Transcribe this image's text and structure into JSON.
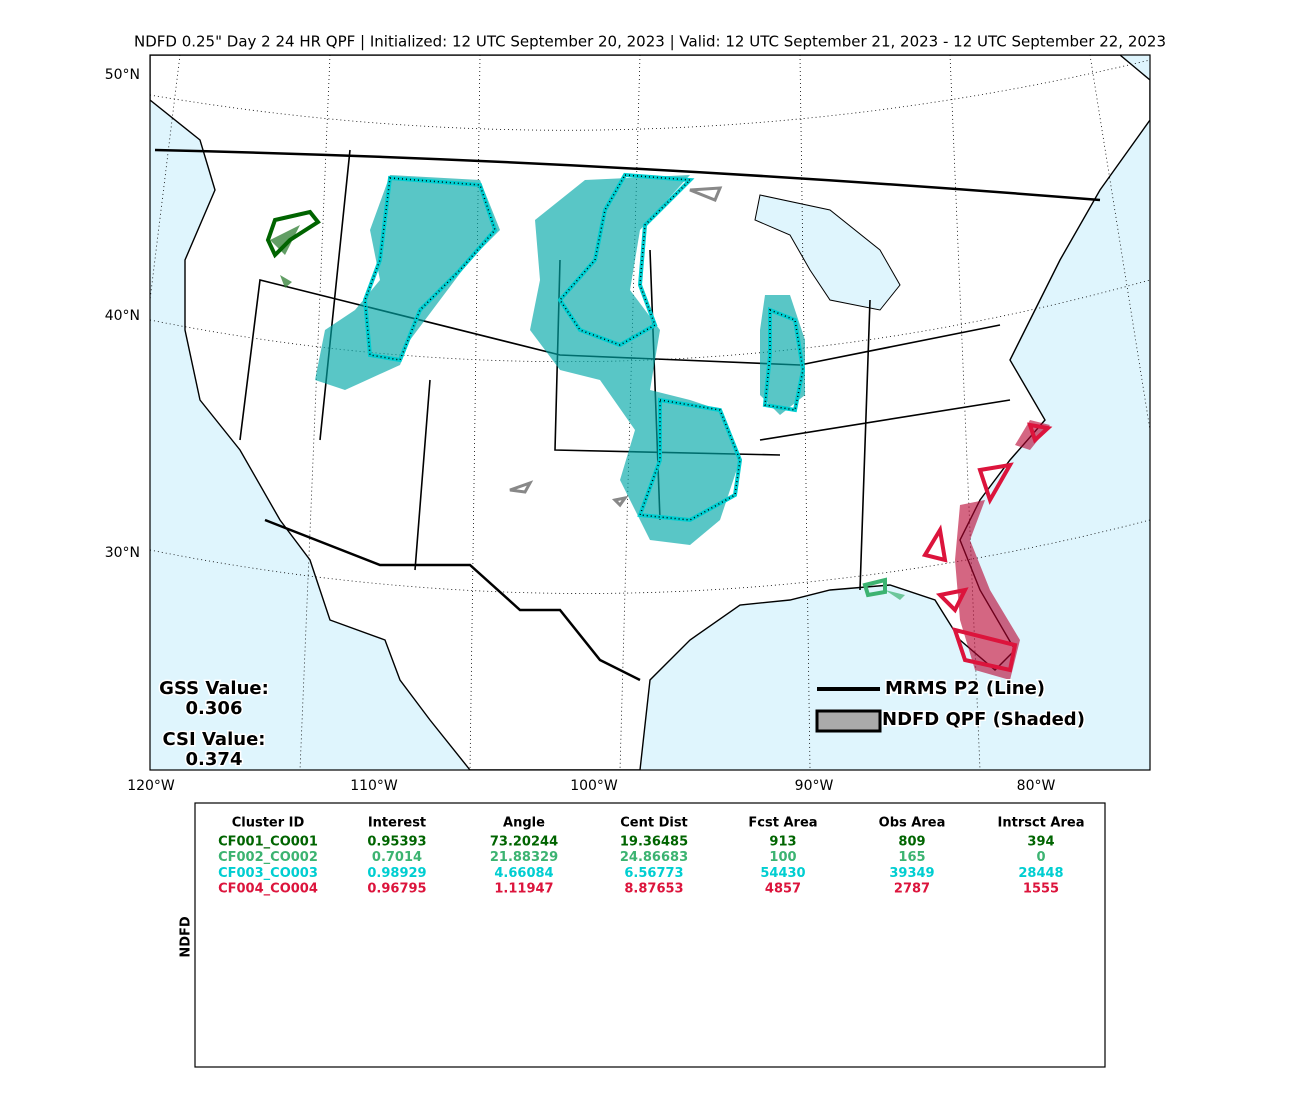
{
  "title": "NDFD 0.25\" Day 2 24 HR QPF | Initialized: 12 UTC September 20, 2023 | Valid: 12 UTC September 21, 2023 - 12 UTC September 22, 2023",
  "map": {
    "lat_labels": [
      "50°N",
      "40°N",
      "30°N"
    ],
    "lon_labels": [
      "120°W",
      "110°W",
      "100°W",
      "90°W",
      "80°W"
    ],
    "gss": {
      "label": "GSS Value:",
      "value": "0.306"
    },
    "csi": {
      "label": "CSI Value:",
      "value": "0.374"
    },
    "legend": {
      "line": "MRMS P2 (Line)",
      "shaded": "NDFD QPF (Shaded)"
    }
  },
  "table": {
    "side_label": "NDFD",
    "headers": [
      "Cluster ID",
      "Interest",
      "Angle",
      "Cent Dist",
      "Fcst Area",
      "Obs Area",
      "Intrsct Area"
    ],
    "rows": [
      {
        "color": "#006400",
        "cells": [
          "CF001_CO001",
          "0.95393",
          "73.20244",
          "19.36485",
          "913",
          "809",
          "394"
        ]
      },
      {
        "color": "#3cb371",
        "cells": [
          "CF002_CO002",
          "0.7014",
          "21.88329",
          "24.86683",
          "100",
          "165",
          "0"
        ]
      },
      {
        "color": "#00ced1",
        "cells": [
          "CF003_CO003",
          "0.98929",
          "4.66084",
          "6.56773",
          "54430",
          "39349",
          "28448"
        ]
      },
      {
        "color": "#dc143c",
        "cells": [
          "CF004_CO004",
          "0.96795",
          "1.11947",
          "8.87653",
          "4857",
          "2787",
          "1555"
        ]
      }
    ]
  }
}
